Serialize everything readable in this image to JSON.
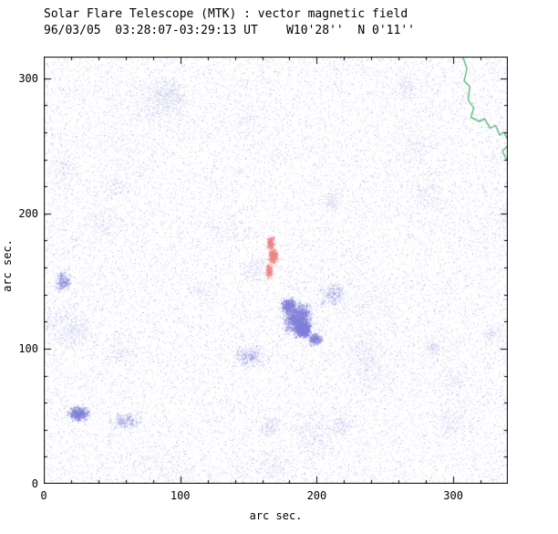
{
  "chart_data": {
    "type": "heatmap",
    "title": "Solar Flare Telescope (MTK) : vector magnetic field",
    "subtitle": "96/03/05  03:28:07-03:29:13 UT    W10'28''  N 0'11''",
    "xlabel": "arc sec.",
    "ylabel": "arc sec.",
    "xlim": [
      0,
      340
    ],
    "ylim": [
      0,
      316
    ],
    "xticks": [
      0,
      100,
      200,
      300
    ],
    "yticks": [
      0,
      100,
      200,
      300
    ],
    "minor_tick_step": 20,
    "grid": false,
    "legend": false,
    "colors": {
      "background": "#ffffff",
      "axis": "#000000",
      "noise_negative": "#9a9ae2",
      "negative": "#7f7fd8",
      "positive": "#ef8484",
      "contour": "#3db163"
    },
    "noise": {
      "seed": 42,
      "base_count": 26000,
      "dark_count": 6000,
      "cluster_count": 46,
      "cluster_dot_count": 210
    },
    "features": [
      {
        "polarity": "positive",
        "x": 166,
        "y": 178,
        "sx": 2.5,
        "sy": 4.5,
        "count": 350,
        "alpha": 0.5
      },
      {
        "polarity": "positive",
        "x": 168,
        "y": 168,
        "sx": 3.0,
        "sy": 5.0,
        "count": 500,
        "alpha": 0.55
      },
      {
        "polarity": "positive",
        "x": 165,
        "y": 158,
        "sx": 2.5,
        "sy": 4.5,
        "count": 300,
        "alpha": 0.45
      },
      {
        "polarity": "negative",
        "x": 186,
        "y": 122,
        "sx": 9.0,
        "sy": 11.0,
        "count": 2200,
        "alpha": 0.4
      },
      {
        "polarity": "negative",
        "x": 190,
        "y": 114,
        "sx": 5.0,
        "sy": 5.0,
        "count": 1100,
        "alpha": 0.6
      },
      {
        "polarity": "negative",
        "x": 179,
        "y": 132,
        "sx": 5.0,
        "sy": 5.0,
        "count": 600,
        "alpha": 0.45
      },
      {
        "polarity": "negative",
        "x": 199,
        "y": 107,
        "sx": 5.0,
        "sy": 4.0,
        "count": 400,
        "alpha": 0.4
      },
      {
        "polarity": "negative",
        "x": 26,
        "y": 52,
        "sx": 7.0,
        "sy": 5.0,
        "count": 800,
        "alpha": 0.45
      },
      {
        "polarity": "negative",
        "x": 14,
        "y": 150,
        "sx": 5.0,
        "sy": 7.0,
        "count": 350,
        "alpha": 0.35
      },
      {
        "polarity": "negative",
        "x": 60,
        "y": 46,
        "sx": 10.0,
        "sy": 6.0,
        "count": 300,
        "alpha": 0.3
      },
      {
        "polarity": "negative",
        "x": 150,
        "y": 95,
        "sx": 12.0,
        "sy": 8.0,
        "count": 350,
        "alpha": 0.28
      },
      {
        "polarity": "negative",
        "x": 212,
        "y": 140,
        "sx": 10.0,
        "sy": 8.0,
        "count": 300,
        "alpha": 0.28
      }
    ],
    "contours": [
      [
        [
          307,
          316
        ],
        [
          310,
          307
        ],
        [
          308,
          298
        ],
        [
          312,
          294
        ],
        [
          311,
          284
        ],
        [
          315,
          278
        ],
        [
          313,
          271
        ],
        [
          319,
          268
        ],
        [
          323,
          270
        ],
        [
          327,
          263
        ],
        [
          331,
          265
        ],
        [
          334,
          258
        ],
        [
          337,
          260
        ],
        [
          340,
          255
        ]
      ],
      [
        [
          340,
          250
        ],
        [
          336,
          246
        ],
        [
          338,
          242
        ],
        [
          340,
          239
        ]
      ]
    ]
  }
}
